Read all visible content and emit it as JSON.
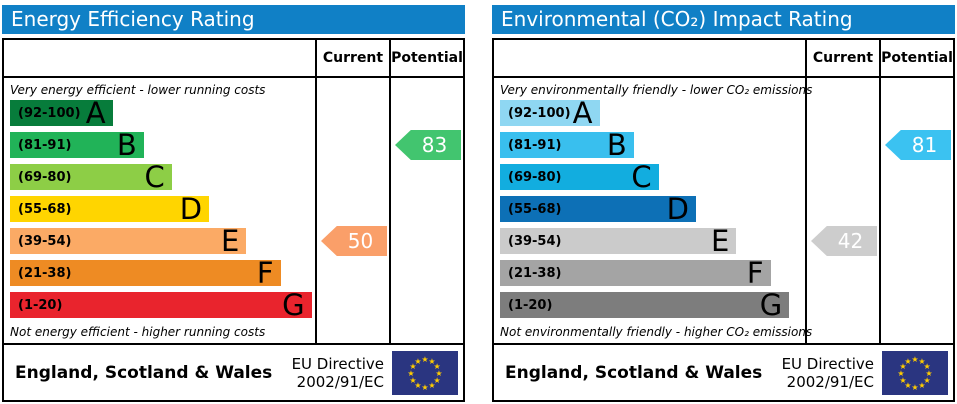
{
  "colors": {
    "header_bar": "#1080c6",
    "table_border": "#000000",
    "flag_blue": "#2a3580",
    "flag_stars": "#ffcc00",
    "arrow_text": "#ffffff"
  },
  "chart_data": [
    {
      "type": "bar",
      "title": "Energy Efficiency Rating",
      "caption_top": "Very energy efficient - lower running costs",
      "caption_bottom": "Not energy efficient - higher running costs",
      "bands": [
        {
          "letter": "A",
          "range": "(92-100)",
          "color": "#077c3b"
        },
        {
          "letter": "B",
          "range": "(81-91)",
          "color": "#21b358"
        },
        {
          "letter": "C",
          "range": "(69-80)",
          "color": "#8dce46"
        },
        {
          "letter": "D",
          "range": "(55-68)",
          "color": "#ffd500"
        },
        {
          "letter": "E",
          "range": "(39-54)",
          "color": "#fbaa65"
        },
        {
          "letter": "F",
          "range": "(21-38)",
          "color": "#ee8b23"
        },
        {
          "letter": "G",
          "range": "(1-20)",
          "color": "#e9242d"
        }
      ],
      "current": 50,
      "current_band": "E",
      "potential": 83,
      "potential_band": "B"
    },
    {
      "type": "bar",
      "title": "Environmental (CO₂) Impact Rating",
      "caption_top": "Very environmentally friendly - lower CO₂ emissions",
      "caption_bottom": "Not environmentally friendly - higher CO₂ emissions",
      "bands": [
        {
          "letter": "A",
          "range": "(92-100)",
          "color": "#8fd7f2"
        },
        {
          "letter": "B",
          "range": "(81-91)",
          "color": "#39bfee"
        },
        {
          "letter": "C",
          "range": "(69-80)",
          "color": "#12addf"
        },
        {
          "letter": "D",
          "range": "(55-68)",
          "color": "#0d70b6"
        },
        {
          "letter": "E",
          "range": "(39-54)",
          "color": "#cbcbcb"
        },
        {
          "letter": "F",
          "range": "(21-38)",
          "color": "#a4a4a4"
        },
        {
          "letter": "G",
          "range": "(1-20)",
          "color": "#7d7d7d"
        }
      ],
      "current": 42,
      "current_band": "E",
      "potential": 81,
      "potential_band": "B"
    }
  ],
  "panels": [
    {
      "title": "Energy Efficiency Rating",
      "columns": {
        "current": "Current",
        "potential": "Potential"
      },
      "caption_top": "Very energy efficient - lower running costs",
      "caption_bottom": "Not energy efficient - higher running costs",
      "bands": [
        {
          "letter": "A",
          "range": "(92-100)",
          "color": "#077c3b",
          "width_pct": 33
        },
        {
          "letter": "B",
          "range": "(81-91)",
          "color": "#21b358",
          "width_pct": 43
        },
        {
          "letter": "C",
          "range": "(69-80)",
          "color": "#8dce46",
          "width_pct": 52
        },
        {
          "letter": "D",
          "range": "(55-68)",
          "color": "#ffd500",
          "width_pct": 64
        },
        {
          "letter": "E",
          "range": "(39-54)",
          "color": "#fbaa65",
          "width_pct": 76
        },
        {
          "letter": "F",
          "range": "(21-38)",
          "color": "#ee8b23",
          "width_pct": 87
        },
        {
          "letter": "G",
          "range": "(1-20)",
          "color": "#e9242d",
          "width_pct": 97
        }
      ],
      "current": {
        "value": "50",
        "row": 4,
        "color": "#fa9f69"
      },
      "potential": {
        "value": "83",
        "row": 1,
        "color": "#42c56f"
      },
      "footer": {
        "region": "England, Scotland & Wales",
        "directive_line1": "EU Directive",
        "directive_line2": "2002/91/EC"
      }
    },
    {
      "title": "Environmental (CO₂) Impact Rating",
      "columns": {
        "current": "Current",
        "potential": "Potential"
      },
      "caption_top": "Very environmentally friendly - lower CO₂ emissions",
      "caption_bottom": "Not environmentally friendly - higher CO₂ emissions",
      "bands": [
        {
          "letter": "A",
          "range": "(92-100)",
          "color": "#8fd7f2",
          "width_pct": 32
        },
        {
          "letter": "B",
          "range": "(81-91)",
          "color": "#39bfee",
          "width_pct": 43
        },
        {
          "letter": "C",
          "range": "(69-80)",
          "color": "#12addf",
          "width_pct": 51
        },
        {
          "letter": "D",
          "range": "(55-68)",
          "color": "#0d70b6",
          "width_pct": 63
        },
        {
          "letter": "E",
          "range": "(39-54)",
          "color": "#cbcbcb",
          "width_pct": 76
        },
        {
          "letter": "F",
          "range": "(21-38)",
          "color": "#a4a4a4",
          "width_pct": 87
        },
        {
          "letter": "G",
          "range": "(1-20)",
          "color": "#7d7d7d",
          "width_pct": 93
        }
      ],
      "current": {
        "value": "42",
        "row": 4,
        "color": "#cdcdcd"
      },
      "potential": {
        "value": "81",
        "row": 1,
        "color": "#3bc2f1"
      },
      "footer": {
        "region": "England, Scotland & Wales",
        "directive_line1": "EU Directive",
        "directive_line2": "2002/91/EC"
      }
    }
  ]
}
